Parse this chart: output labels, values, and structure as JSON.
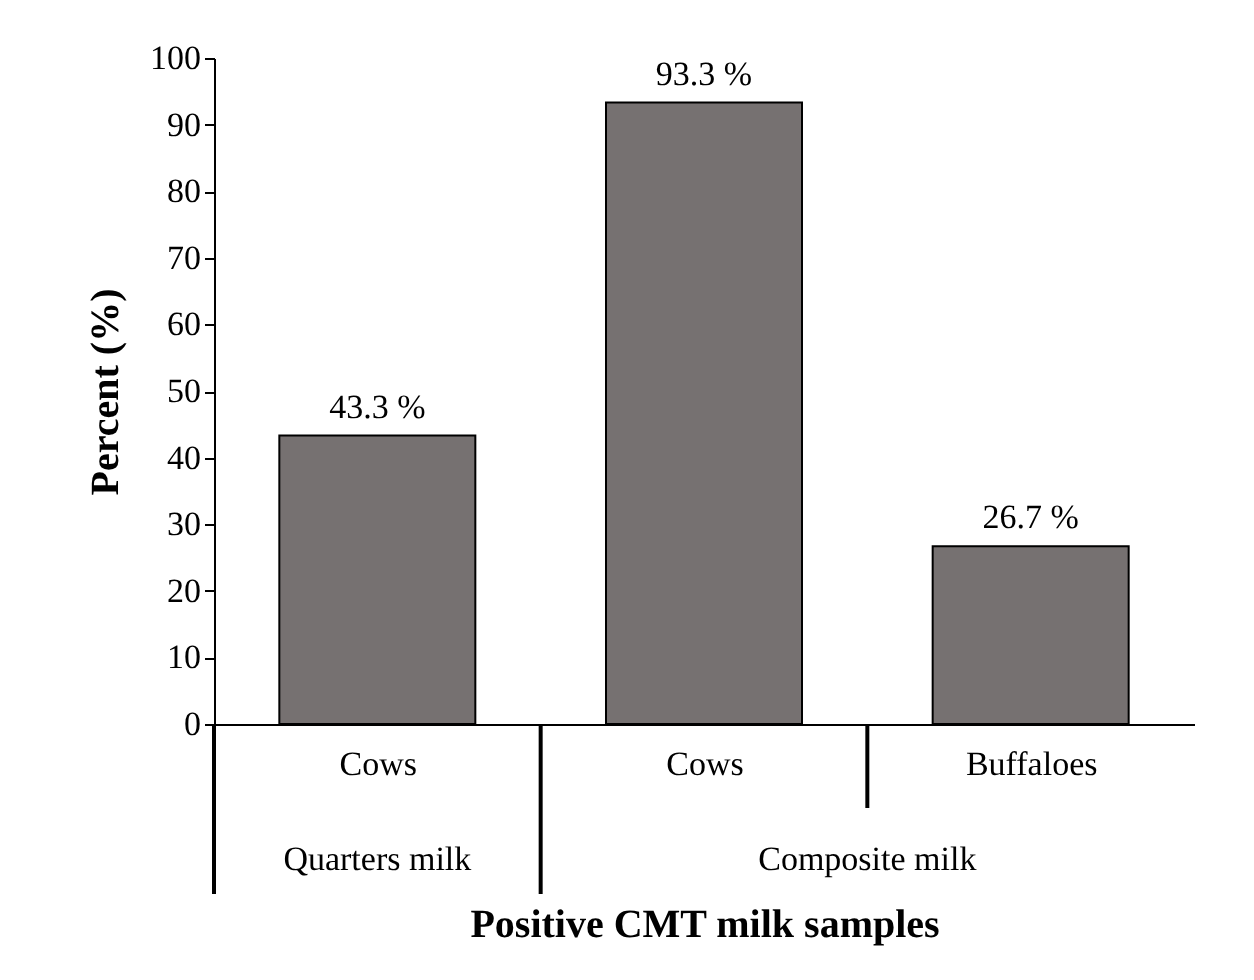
{
  "chart_data": {
    "type": "bar",
    "categories": [
      "Cows",
      "Cows",
      "Buffaloes"
    ],
    "values": [
      43.3,
      93.3,
      26.7
    ],
    "value_labels": [
      "43.3 %",
      "93.3 %",
      "26.7 %"
    ],
    "color": "#767171",
    "xlabel": "Positive CMT milk samples",
    "ylabel": "Percent (%)",
    "ylim": [
      0,
      100
    ],
    "yticks": [
      0,
      10,
      20,
      30,
      40,
      50,
      60,
      70,
      80,
      90,
      100
    ],
    "annotations": [
      "Quarters milk",
      "Composite milk"
    ],
    "grid": false
  }
}
